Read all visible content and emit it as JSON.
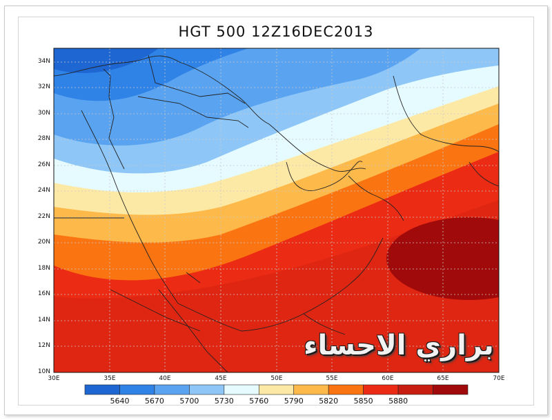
{
  "title": "HGT 500 12Z16DEC2013",
  "watermark_text": "براري الاحساء",
  "lat_labels": [
    "34N",
    "32N",
    "30N",
    "28N",
    "26N",
    "24N",
    "22N",
    "20N",
    "18N",
    "16N",
    "14N",
    "12N",
    "10N"
  ],
  "lon_labels": [
    "30E",
    "35E",
    "40E",
    "45E",
    "50E",
    "55E",
    "60E",
    "65E",
    "70E"
  ],
  "colorbar": {
    "labels": [
      "5640",
      "5670",
      "5700",
      "5730",
      "5760",
      "5790",
      "5820",
      "5850",
      "5880"
    ],
    "colors": [
      "#1e66d2",
      "#2f82e6",
      "#5aa3f0",
      "#8ec7f7",
      "#e6fbff",
      "#fde9a6",
      "#fdb94a",
      "#fb7412",
      "#eb2b13",
      "#c81e12",
      "#a00a0a"
    ]
  },
  "map_data": {
    "variable": "HGT",
    "level": "500",
    "time": "12Z16DEC2013",
    "lon_range": [
      30,
      70
    ],
    "lat_range": [
      10,
      35
    ],
    "contour_levels": [
      5640,
      5670,
      5700,
      5730,
      5760,
      5790,
      5820,
      5850,
      5880
    ],
    "grid": true
  }
}
